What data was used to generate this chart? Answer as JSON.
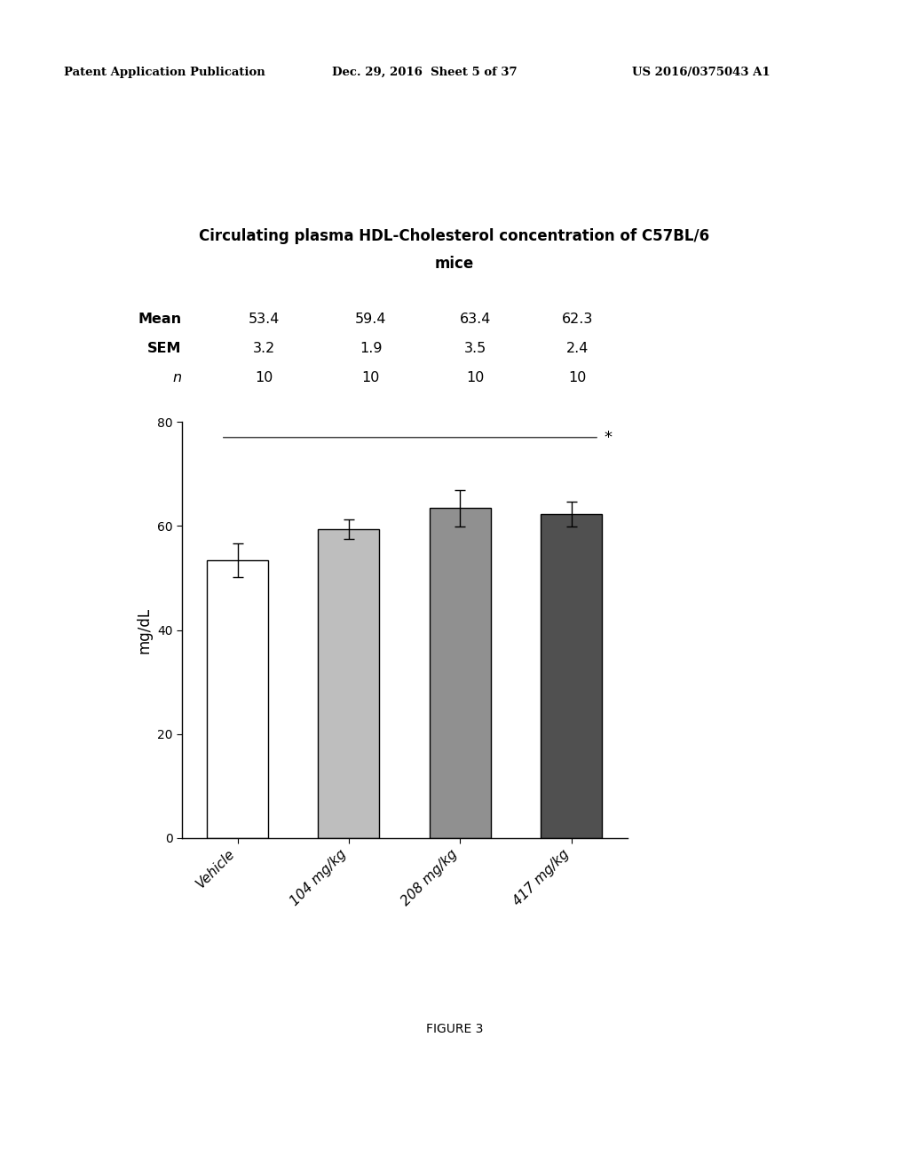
{
  "title_line1": "Circulating plasma HDL-Cholesterol concentration of C57BL/6",
  "title_line2": "mice",
  "categories": [
    "Vehicle",
    "104 mg/kg",
    "208 mg/kg",
    "417 mg/kg"
  ],
  "means": [
    53.4,
    59.4,
    63.4,
    62.3
  ],
  "sems": [
    3.2,
    1.9,
    3.5,
    2.4
  ],
  "n_values": [
    10,
    10,
    10,
    10
  ],
  "ylabel": "mg/dL",
  "ylim": [
    0,
    80
  ],
  "yticks": [
    0,
    20,
    40,
    60,
    80
  ],
  "bar_colors": [
    "#ffffff",
    "#bebebe",
    "#909090",
    "#505050"
  ],
  "bar_edgecolor": "#000000",
  "bar_width": 0.55,
  "figure_caption": "FIGURE 3",
  "header_left": "Patent Application Publication",
  "header_mid": "Dec. 29, 2016  Sheet 5 of 37",
  "header_right": "US 2016/0375043 A1",
  "stat_star": "*",
  "table_row_labels": [
    "Mean",
    "SEM",
    "n"
  ],
  "table_values": [
    [
      "53.4",
      "59.4",
      "63.4",
      "62.3"
    ],
    [
      "3.2",
      "1.9",
      "3.5",
      "2.4"
    ],
    [
      "10",
      "10",
      "10",
      "10"
    ]
  ]
}
